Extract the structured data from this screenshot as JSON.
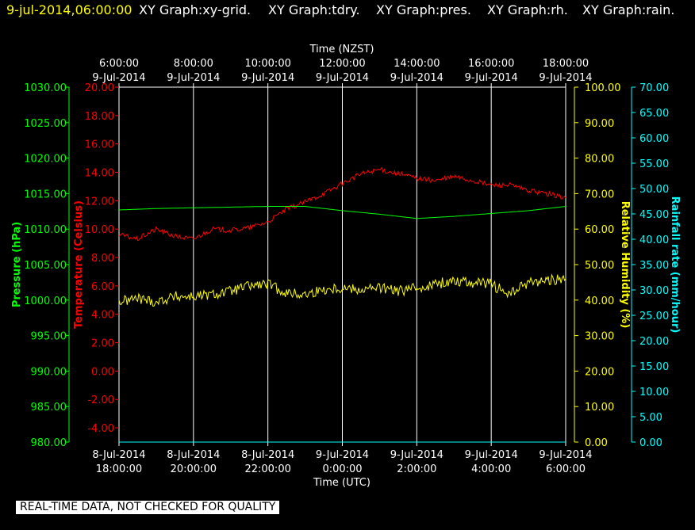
{
  "header": {
    "date_label": "9-jul-2014,06:00:00",
    "graph_names": [
      "XY Graph:xy-grid.",
      "XY Graph:tdry.",
      "XY Graph:pres.",
      "XY Graph:rh.",
      "XY Graph:rain."
    ]
  },
  "footer": {
    "note": "REAL-TIME DATA, NOT CHECKED FOR QUALITY"
  },
  "colors": {
    "background": "#000000",
    "grid": "#ffffff",
    "title_date": "#ffff00",
    "title_text": "#ffffff",
    "pressure": "#00ff00",
    "temperature": "#ff0000",
    "humidity": "#ffff00",
    "rainfall": "#00ffff"
  },
  "chart_data": {
    "type": "line",
    "x_top": {
      "label": "Time (NZST)",
      "ticks": [
        [
          "6:00:00",
          "9-Jul-2014"
        ],
        [
          "8:00:00",
          "9-Jul-2014"
        ],
        [
          "10:00:00",
          "9-Jul-2014"
        ],
        [
          "12:00:00",
          "9-Jul-2014"
        ],
        [
          "14:00:00",
          "9-Jul-2014"
        ],
        [
          "16:00:00",
          "9-Jul-2014"
        ],
        [
          "18:00:00",
          "9-Jul-2014"
        ]
      ]
    },
    "x_bottom": {
      "label": "Time (UTC)",
      "ticks": [
        [
          "8-Jul-2014",
          "18:00:00"
        ],
        [
          "8-Jul-2014",
          "20:00:00"
        ],
        [
          "8-Jul-2014",
          "22:00:00"
        ],
        [
          "9-Jul-2014",
          "0:00:00"
        ],
        [
          "9-Jul-2014",
          "2:00:00"
        ],
        [
          "9-Jul-2014",
          "4:00:00"
        ],
        [
          "9-Jul-2014",
          "6:00:00"
        ]
      ]
    },
    "xlim": [
      "2014-07-08T18:00:00Z",
      "2014-07-09T06:00:00Z"
    ],
    "axes": {
      "pressure": {
        "label": "Pressure (hPa)",
        "ylim": [
          980,
          1030
        ],
        "ticks": [
          "1030.00",
          "1025.00",
          "1020.00",
          "1015.00",
          "1010.00",
          "1005.00",
          "1000.00",
          "995.00",
          "990.00",
          "985.00",
          "980.00"
        ]
      },
      "temperature": {
        "label": "Temperature (Celsius)",
        "ylim": [
          -5,
          20
        ],
        "ticks": [
          "20.00",
          "18.00",
          "16.00",
          "14.00",
          "12.00",
          "10.00",
          "8.00",
          "6.00",
          "4.00",
          "2.00",
          "0.00",
          "-2.00",
          "-4.00"
        ]
      },
      "humidity": {
        "label": "Relative Humidity (%)",
        "ylim": [
          0,
          100
        ],
        "ticks": [
          "100.00",
          "90.00",
          "80.00",
          "70.00",
          "60.00",
          "50.00",
          "40.00",
          "30.00",
          "20.00",
          "10.00",
          "0.00"
        ]
      },
      "rainfall": {
        "label": "Rainfall rate (mm/hour)",
        "ylim": [
          0,
          70
        ],
        "ticks": [
          "70.00",
          "65.00",
          "60.00",
          "55.00",
          "50.00",
          "45.00",
          "40.00",
          "35.00",
          "30.00",
          "25.00",
          "20.00",
          "15.00",
          "10.00",
          "5.00",
          "0.00"
        ]
      }
    },
    "grid": "vertical",
    "series": [
      {
        "axis": "temperature",
        "x": [
          "2014-07-08T18:00:00Z",
          "2014-07-08T18:30:00Z",
          "2014-07-08T19:00:00Z",
          "2014-07-08T19:30:00Z",
          "2014-07-08T20:00:00Z",
          "2014-07-08T20:30:00Z",
          "2014-07-08T21:00:00Z",
          "2014-07-08T21:30:00Z",
          "2014-07-08T22:00:00Z",
          "2014-07-08T22:30:00Z",
          "2014-07-08T23:00:00Z",
          "2014-07-08T23:30:00Z",
          "2014-07-09T00:00:00Z",
          "2014-07-09T00:30:00Z",
          "2014-07-09T01:00:00Z",
          "2014-07-09T01:30:00Z",
          "2014-07-09T02:00:00Z",
          "2014-07-09T02:30:00Z",
          "2014-07-09T03:00:00Z",
          "2014-07-09T03:30:00Z",
          "2014-07-09T04:00:00Z",
          "2014-07-09T04:30:00Z",
          "2014-07-09T05:00:00Z",
          "2014-07-09T05:30:00Z",
          "2014-07-09T06:00:00Z"
        ],
        "y": [
          9.6,
          9.3,
          10.0,
          9.5,
          9.3,
          10.0,
          9.9,
          10.1,
          10.5,
          11.4,
          11.9,
          12.5,
          13.2,
          13.9,
          14.2,
          13.9,
          13.6,
          13.4,
          13.7,
          13.4,
          13.1,
          13.1,
          12.7,
          12.5,
          12.2
        ]
      },
      {
        "axis": "pressure",
        "x": [
          "2014-07-08T18:00:00Z",
          "2014-07-08T19:00:00Z",
          "2014-07-08T20:00:00Z",
          "2014-07-08T21:00:00Z",
          "2014-07-08T22:00:00Z",
          "2014-07-08T23:00:00Z",
          "2014-07-09T00:00:00Z",
          "2014-07-09T01:00:00Z",
          "2014-07-09T02:00:00Z",
          "2014-07-09T03:00:00Z",
          "2014-07-09T04:00:00Z",
          "2014-07-09T05:00:00Z",
          "2014-07-09T06:00:00Z"
        ],
        "y": [
          1012.7,
          1012.9,
          1013.0,
          1013.1,
          1013.2,
          1013.2,
          1012.6,
          1012.1,
          1011.5,
          1011.8,
          1012.2,
          1012.6,
          1013.2
        ]
      },
      {
        "axis": "humidity",
        "x": [
          "2014-07-08T18:00:00Z",
          "2014-07-08T18:30:00Z",
          "2014-07-08T19:00:00Z",
          "2014-07-08T19:30:00Z",
          "2014-07-08T20:00:00Z",
          "2014-07-08T20:30:00Z",
          "2014-07-08T21:00:00Z",
          "2014-07-08T21:30:00Z",
          "2014-07-08T22:00:00Z",
          "2014-07-08T22:30:00Z",
          "2014-07-08T23:00:00Z",
          "2014-07-08T23:30:00Z",
          "2014-07-09T00:00:00Z",
          "2014-07-09T00:30:00Z",
          "2014-07-09T01:00:00Z",
          "2014-07-09T01:30:00Z",
          "2014-07-09T02:00:00Z",
          "2014-07-09T02:30:00Z",
          "2014-07-09T03:00:00Z",
          "2014-07-09T03:30:00Z",
          "2014-07-09T04:00:00Z",
          "2014-07-09T04:30:00Z",
          "2014-07-09T05:00:00Z",
          "2014-07-09T05:30:00Z",
          "2014-07-09T06:00:00Z"
        ],
        "y": [
          39.5,
          40.5,
          39.5,
          41.0,
          41.0,
          41.5,
          42.5,
          44.0,
          44.5,
          42.0,
          41.5,
          43.0,
          43.5,
          43.0,
          43.5,
          42.5,
          43.5,
          44.5,
          45.5,
          45.0,
          44.5,
          41.5,
          45.0,
          45.5,
          46.0
        ]
      },
      {
        "axis": "rainfall",
        "x": [
          "2014-07-08T18:00:00Z",
          "2014-07-09T06:00:00Z"
        ],
        "y": [
          0,
          0
        ]
      }
    ]
  }
}
